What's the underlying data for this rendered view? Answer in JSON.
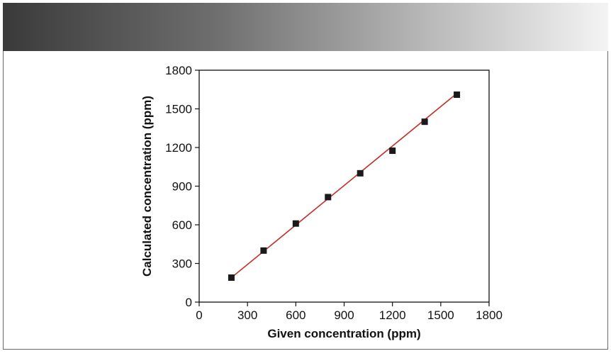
{
  "chart_data": {
    "type": "scatter",
    "title": "",
    "xlabel": "Given concentration (ppm)",
    "ylabel": "Calculated concentration (ppm)",
    "xlim": [
      0,
      1800
    ],
    "ylim": [
      0,
      1800
    ],
    "x_ticks": [
      0,
      300,
      600,
      900,
      1200,
      1500,
      1800
    ],
    "y_ticks": [
      0,
      300,
      600,
      900,
      1200,
      1500,
      1800
    ],
    "grid": false,
    "legend": "none",
    "series": [
      {
        "x": [
          200,
          400,
          600,
          800,
          1000,
          1200,
          1400,
          1600
        ],
        "y": [
          190,
          400,
          610,
          815,
          1000,
          1175,
          1400,
          1610
        ],
        "marker": "square",
        "marker_color": "#1a1a1a"
      }
    ],
    "fit_line": {
      "x": [
        200,
        1600
      ],
      "y": [
        190,
        1620
      ],
      "color": "#c0312b"
    }
  }
}
